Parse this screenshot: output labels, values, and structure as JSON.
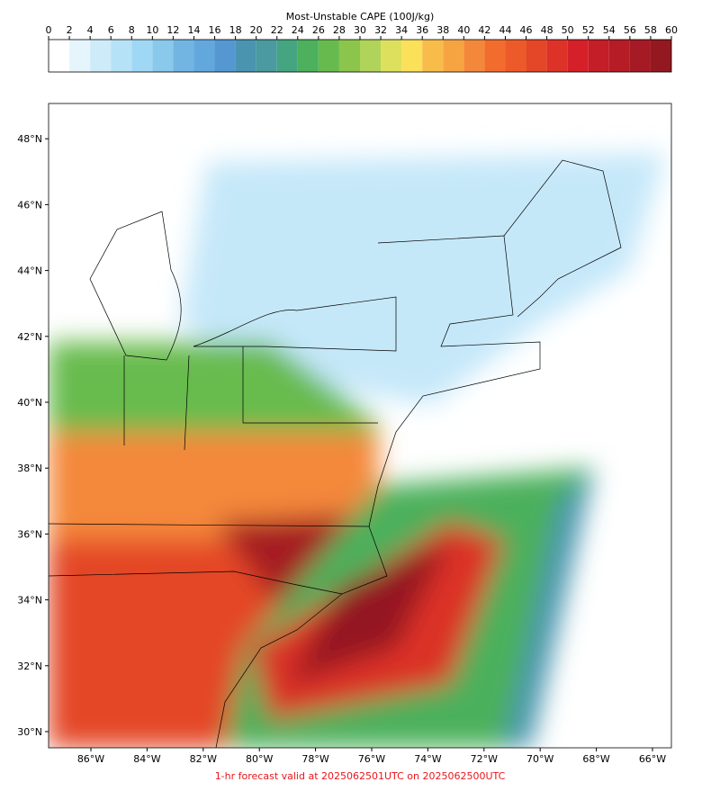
{
  "colorbar": {
    "title": "Most-Unstable CAPE (100J/kg)",
    "ticks": [
      0,
      2,
      4,
      6,
      8,
      10,
      12,
      14,
      16,
      18,
      20,
      22,
      24,
      26,
      28,
      30,
      32,
      34,
      36,
      38,
      40,
      42,
      44,
      46,
      48,
      50,
      52,
      54,
      56,
      58,
      60
    ],
    "colors": [
      "#ffffff",
      "#e6f5fc",
      "#cdebf9",
      "#b6e2f7",
      "#9fd8f5",
      "#8ac8ec",
      "#73b5e2",
      "#63a8dc",
      "#5597d1",
      "#4a94b0",
      "#4a9aa0",
      "#45a581",
      "#4cb05c",
      "#67bb4e",
      "#8cc54c",
      "#b0d35a",
      "#dde05c",
      "#fbe05a",
      "#f8bc4a",
      "#f6a442",
      "#f4883a",
      "#f26c2e",
      "#ed5a2a",
      "#e44628",
      "#dc3228",
      "#d5202a",
      "#c41e28",
      "#b61c26",
      "#a51a24",
      "#941820"
    ]
  },
  "map": {
    "lat_ticks": [
      {
        "value": 48,
        "label": "48°N"
      },
      {
        "value": 46,
        "label": "46°N"
      },
      {
        "value": 44,
        "label": "44°N"
      },
      {
        "value": 42,
        "label": "42°N"
      },
      {
        "value": 40,
        "label": "40°N"
      },
      {
        "value": 38,
        "label": "38°N"
      },
      {
        "value": 36,
        "label": "36°N"
      },
      {
        "value": 34,
        "label": "34°N"
      },
      {
        "value": 32,
        "label": "32°N"
      },
      {
        "value": 30,
        "label": "30°N"
      }
    ],
    "lon_ticks": [
      {
        "value": -86,
        "label": "86°W"
      },
      {
        "value": -84,
        "label": "84°W"
      },
      {
        "value": -82,
        "label": "82°W"
      },
      {
        "value": -80,
        "label": "80°W"
      },
      {
        "value": -78,
        "label": "78°W"
      },
      {
        "value": -76,
        "label": "76°W"
      },
      {
        "value": -74,
        "label": "74°W"
      },
      {
        "value": -72,
        "label": "72°W"
      },
      {
        "value": -70,
        "label": "70°W"
      },
      {
        "value": -68,
        "label": "68°W"
      },
      {
        "value": -66,
        "label": "66°W"
      }
    ]
  },
  "footer": "1-hr forecast valid at 2025062501UTC on 2025062500UTC"
}
